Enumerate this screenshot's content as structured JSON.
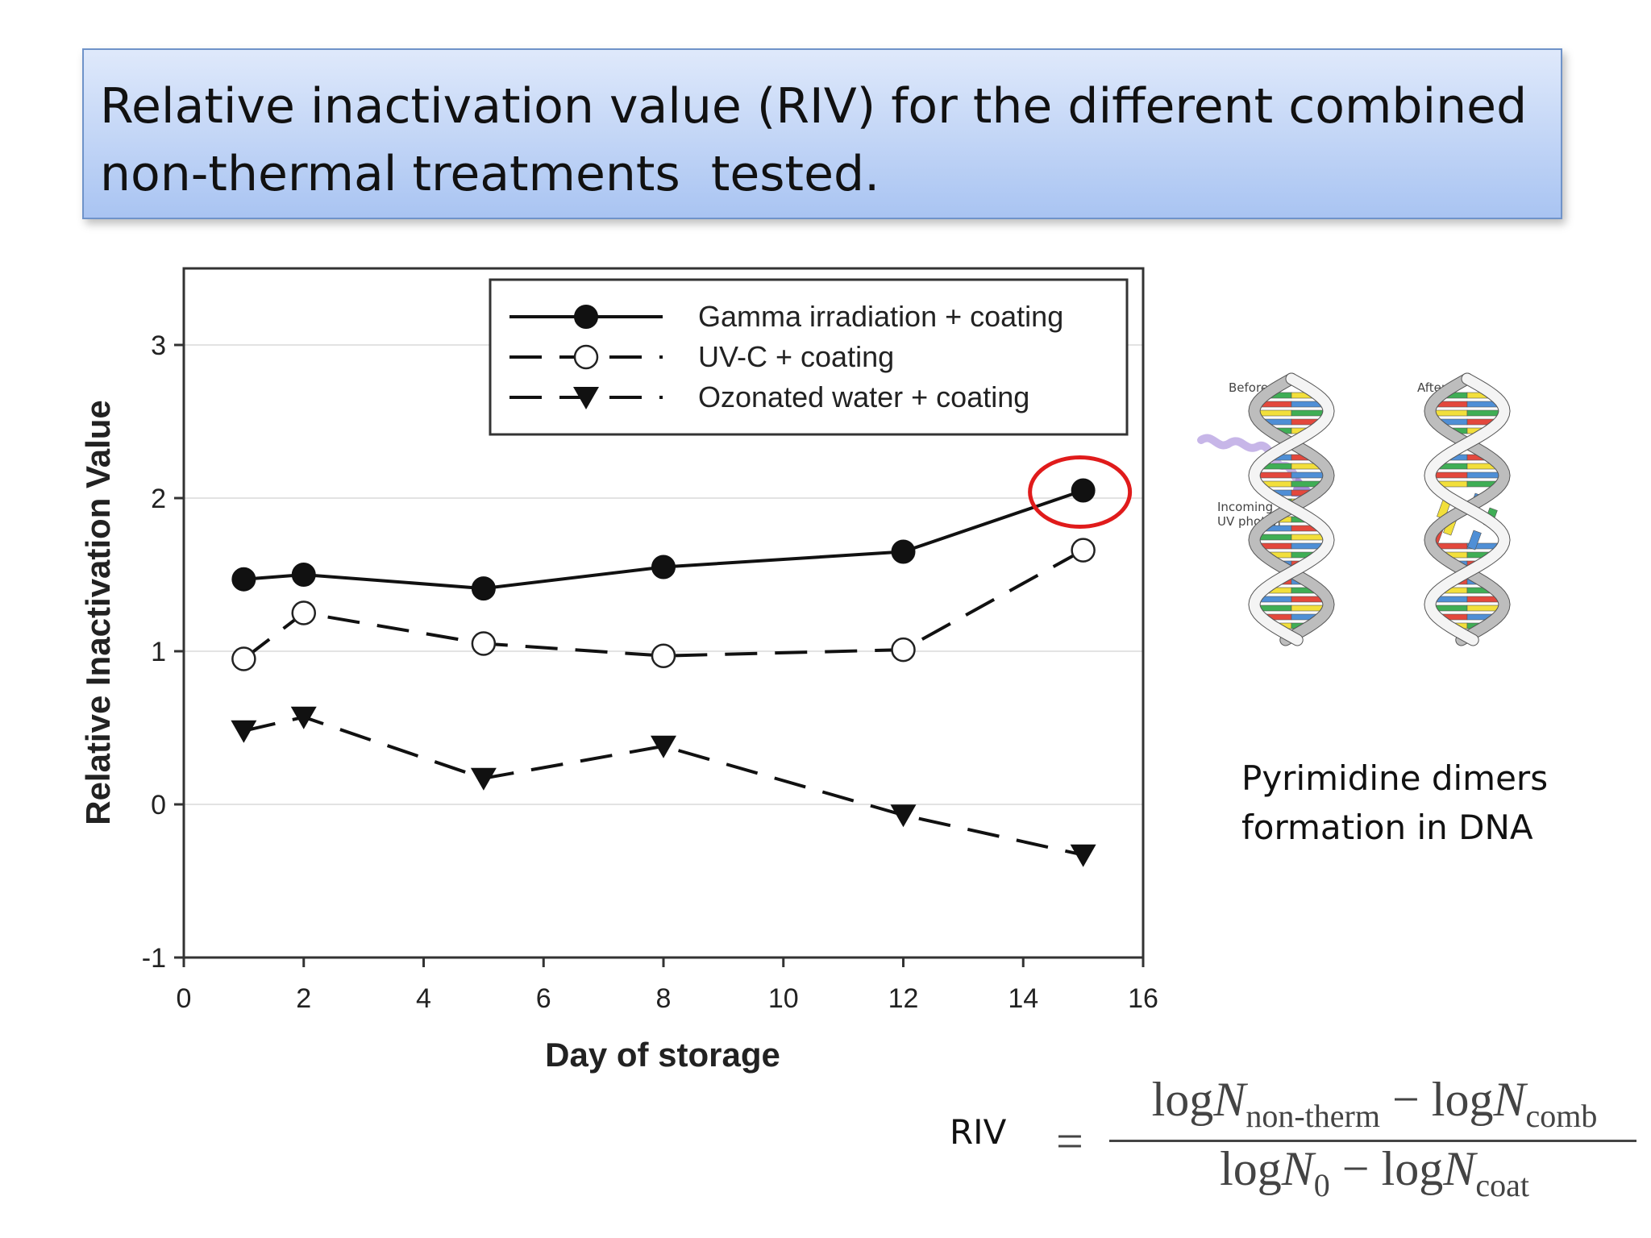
{
  "slide": {
    "title": "Relative inactivation value (RIV) for the different combined non-thermal treatments  tested."
  },
  "chart_data": {
    "type": "line",
    "title": "",
    "xlabel": "Day of storage",
    "ylabel": "Relative Inactivation Value",
    "xlim": [
      0,
      16
    ],
    "ylim": [
      -1,
      3.5
    ],
    "xticks": [
      0,
      2,
      4,
      6,
      8,
      10,
      12,
      14,
      16
    ],
    "yticks": [
      -1,
      0,
      1,
      2,
      3
    ],
    "grid": "horizontal",
    "legend_position": "top-right",
    "series": [
      {
        "name": "Gamma irradiation + coating",
        "marker": "filled-circle",
        "line": "solid",
        "x": [
          1,
          2,
          5,
          8,
          12,
          15
        ],
        "y": [
          1.47,
          1.5,
          1.41,
          1.55,
          1.65,
          2.05
        ]
      },
      {
        "name": "UV-C + coating",
        "marker": "open-circle",
        "line": "dashed",
        "x": [
          1,
          2,
          5,
          8,
          12,
          15
        ],
        "y": [
          0.95,
          1.25,
          1.05,
          0.97,
          1.01,
          1.66
        ]
      },
      {
        "name": "Ozonated water + coating",
        "marker": "filled-triangle-down",
        "line": "dashed",
        "x": [
          1,
          2,
          5,
          8,
          12,
          15
        ],
        "y": [
          0.48,
          0.57,
          0.17,
          0.38,
          -0.07,
          -0.33
        ]
      }
    ],
    "highlight": {
      "series": 0,
      "point_index": 5,
      "color": "#e01b1b"
    }
  },
  "dna": {
    "before_label": "Before:",
    "after_label": "After:",
    "photon_label_line1": "Incoming",
    "photon_label_line2": "UV photon",
    "caption": "Pyrimidine dimers\nformation in DNA"
  },
  "formula": {
    "riv_label": "RIV",
    "equals": "=",
    "num_log1": "log",
    "num_N1": "N",
    "num_sub1": "non-therm",
    "num_minus": " − ",
    "num_log2": "log",
    "num_N2": "N",
    "num_sub2": "comb",
    "den_log1": "log",
    "den_N1": "N",
    "den_sub1": "0",
    "den_minus": " − ",
    "den_log2": "log",
    "den_N2": "N",
    "den_sub2": "coat"
  }
}
